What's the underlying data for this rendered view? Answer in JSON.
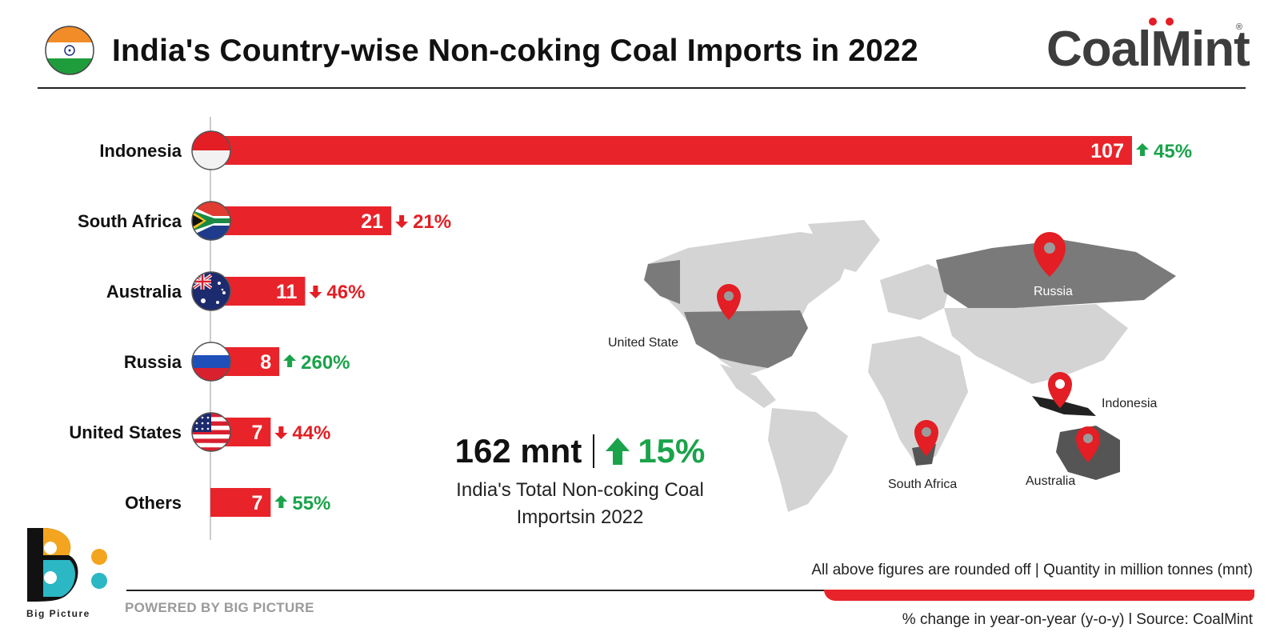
{
  "header": {
    "title": "India's Country-wise Non-coking Coal Imports in 2022",
    "logo_text": "CoalMint",
    "logo_registered": "®"
  },
  "chart_data": {
    "type": "bar",
    "orientation": "horizontal",
    "title": "India's Country-wise Non-coking Coal Imports in 2022",
    "categories": [
      "Indonesia",
      "South Africa",
      "Australia",
      "Russia",
      "United States",
      "Others"
    ],
    "values": [
      107,
      21,
      11,
      8,
      7,
      7
    ],
    "change_labels": [
      "45%",
      "21%",
      "46%",
      "260%",
      "44%",
      "55%"
    ],
    "change_direction": [
      "up",
      "down",
      "down",
      "up",
      "down",
      "up"
    ],
    "unit": "mnt",
    "xlim": [
      0,
      107
    ]
  },
  "total": {
    "value": "162 mnt",
    "change": "15%",
    "description": "India's Total Non-coking Coal Importsin 2022"
  },
  "map": {
    "labels": [
      "Russia",
      "United State",
      "Indonesia",
      "South Africa",
      "Australia"
    ]
  },
  "footer": {
    "note": "All above figures are rounded off | Quantity in million tonnes (mnt)",
    "source": "% change in year-on-year (y-o-y)  l  Source: CoalMint",
    "powered": "POWERED BY BIG PICTURE",
    "brand": "Big Picture"
  },
  "colors": {
    "bar": "#e8242a",
    "up": "#1aa34a",
    "down": "#e31e24",
    "map_land": "#d4d4d4",
    "map_highlight": "#7a7a7a"
  }
}
